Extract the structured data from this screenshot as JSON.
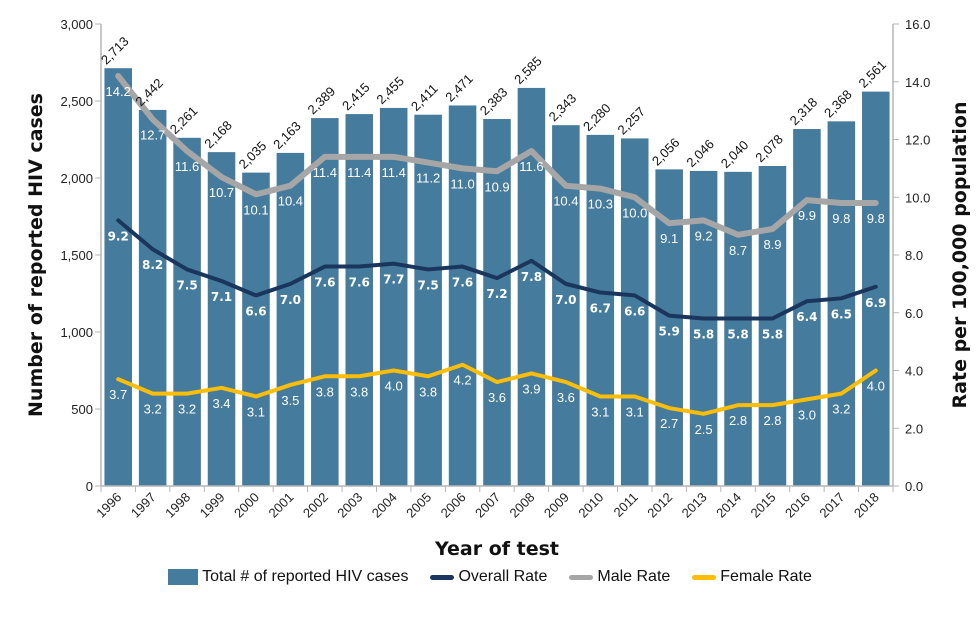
{
  "chart_data": {
    "type": "bar",
    "title": "",
    "xlabel": "Year of test",
    "ylabel": "Number of reported HIV cases",
    "y2label": "Rate per 100,000 population",
    "ylim": [
      0,
      3000
    ],
    "y2lim": [
      0,
      16
    ],
    "yticks": [
      "0",
      "500",
      "1,000",
      "1,500",
      "2,000",
      "2,500",
      "3,000"
    ],
    "yticks_values": [
      0,
      500,
      1000,
      1500,
      2000,
      2500,
      3000
    ],
    "y2ticks": [
      "0.0",
      "2.0",
      "4.0",
      "6.0",
      "8.0",
      "10.0",
      "12.0",
      "14.0",
      "16.0"
    ],
    "y2ticks_values": [
      0,
      2,
      4,
      6,
      8,
      10,
      12,
      14,
      16
    ],
    "grid": false,
    "legend_position": "bottom",
    "categories": [
      "1996",
      "1997",
      "1998",
      "1999",
      "2000",
      "2001",
      "2002",
      "2003",
      "2004",
      "2005",
      "2006",
      "2007",
      "2008",
      "2009",
      "2010",
      "2011",
      "2012",
      "2013",
      "2014",
      "2015",
      "2016",
      "2017",
      "2018"
    ],
    "series": [
      {
        "name": "Total # of reported HIV cases",
        "type": "bar",
        "axis": "left",
        "color": "#457b9d",
        "values": [
          2713,
          2442,
          2261,
          2168,
          2035,
          2163,
          2389,
          2415,
          2455,
          2411,
          2471,
          2383,
          2585,
          2343,
          2280,
          2257,
          2056,
          2046,
          2040,
          2078,
          2318,
          2368,
          2561
        ],
        "labels": [
          "2,713",
          "2,442",
          "2,261",
          "2,168",
          "2,035",
          "2,163",
          "2,389",
          "2,415",
          "2,455",
          "2,411",
          "2,471",
          "2,383",
          "2,585",
          "2,343",
          "2,280",
          "2,257",
          "2,056",
          "2,046",
          "2,040",
          "2,078",
          "2,318",
          "2,368",
          "2,561"
        ]
      },
      {
        "name": "Overall Rate",
        "type": "line",
        "axis": "right",
        "color": "#1b365d",
        "values": [
          9.2,
          8.2,
          7.5,
          7.1,
          6.6,
          7.0,
          7.6,
          7.6,
          7.7,
          7.5,
          7.6,
          7.2,
          7.8,
          7.0,
          6.7,
          6.6,
          5.9,
          5.8,
          5.8,
          5.8,
          6.4,
          6.5,
          6.9
        ],
        "labels": [
          "9.2",
          "8.2",
          "7.5",
          "7.1",
          "6.6",
          "7.0",
          "7.6",
          "7.6",
          "7.7",
          "7.5",
          "7.6",
          "7.2",
          "7.8",
          "7.0",
          "6.7",
          "6.6",
          "5.9",
          "5.8",
          "5.8",
          "5.8",
          "6.4",
          "6.5",
          "6.9"
        ]
      },
      {
        "name": "Male Rate",
        "type": "line",
        "axis": "right",
        "color": "#a6a6a6",
        "values": [
          14.2,
          12.7,
          11.6,
          10.7,
          10.1,
          10.4,
          11.4,
          11.4,
          11.4,
          11.2,
          11.0,
          10.9,
          11.6,
          10.4,
          10.3,
          10.0,
          9.1,
          9.2,
          8.7,
          8.9,
          9.9,
          9.8,
          9.8
        ],
        "labels": [
          "14.2",
          "12.7",
          "11.6",
          "10.7",
          "10.1",
          "10.4",
          "11.4",
          "11.4",
          "11.4",
          "11.2",
          "11.0",
          "10.9",
          "11.6",
          "10.4",
          "10.3",
          "10.0",
          "9.1",
          "9.2",
          "8.7",
          "8.9",
          "9.9",
          "9.8",
          "9.8"
        ]
      },
      {
        "name": "Female Rate",
        "type": "line",
        "axis": "right",
        "color": "#fbbd08",
        "values": [
          3.7,
          3.2,
          3.2,
          3.4,
          3.1,
          3.5,
          3.8,
          3.8,
          4.0,
          3.8,
          4.2,
          3.6,
          3.9,
          3.6,
          3.1,
          3.1,
          2.7,
          2.5,
          2.8,
          2.8,
          3.0,
          3.2,
          4.0
        ],
        "labels": [
          "3.7",
          "3.2",
          "3.2",
          "3.4",
          "3.1",
          "3.5",
          "3.8",
          "3.8",
          "4.0",
          "3.8",
          "4.2",
          "3.6",
          "3.9",
          "3.6",
          "3.1",
          "3.1",
          "2.7",
          "2.5",
          "2.8",
          "2.8",
          "3.0",
          "3.2",
          "4.0"
        ]
      }
    ]
  },
  "legend": {
    "items": [
      {
        "label": "Total # of reported HIV cases",
        "kind": "box",
        "color": "#457b9d"
      },
      {
        "label": "Overall Rate",
        "kind": "line",
        "color": "#1b365d"
      },
      {
        "label": "Male Rate",
        "kind": "line",
        "color": "#a6a6a6"
      },
      {
        "label": "Female Rate",
        "kind": "line",
        "color": "#fbbd08"
      }
    ]
  }
}
